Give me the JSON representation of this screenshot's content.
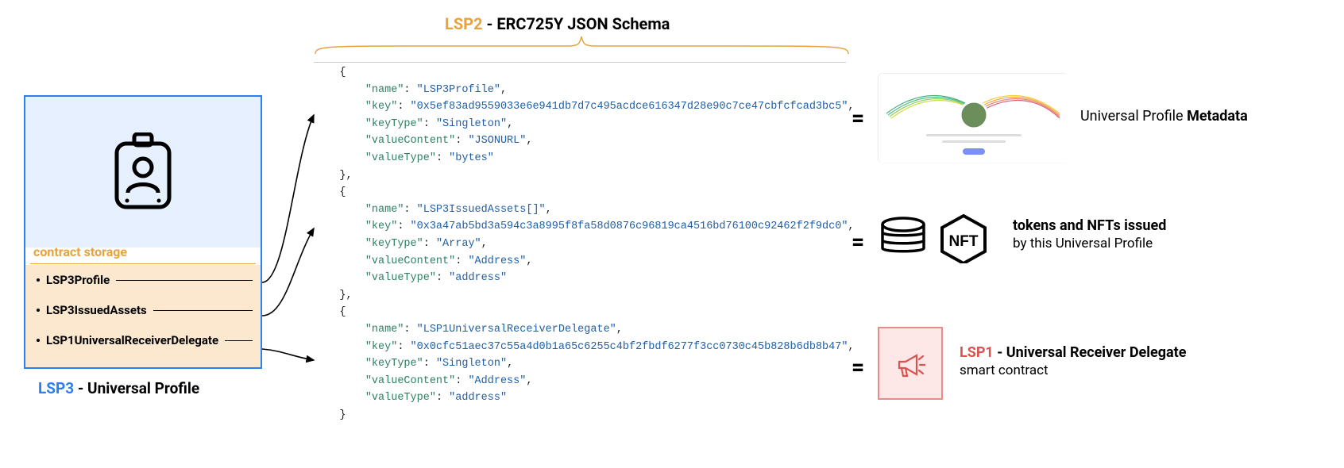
{
  "title": {
    "accent": "LSP2",
    "rest": " - ERC725Y JSON Schema"
  },
  "contract": {
    "storage_label": "contract storage",
    "items": [
      "LSP3Profile",
      "LSP3IssuedAssets",
      "LSP1UniversalReceiverDelegate"
    ],
    "caption_accent": "LSP3",
    "caption_rest": " - Universal Profile"
  },
  "schema": [
    {
      "name": "LSP3Profile",
      "key": "0x5ef83ad9559033e6e941db7d7c495acdce616347d28e90c7ce47cbfcfcad3bc5",
      "keyType": "Singleton",
      "valueContent": "JSONURL",
      "valueType": "bytes"
    },
    {
      "name": "LSP3IssuedAssets[]",
      "key": "0x3a47ab5bd3a594c3a8995f8fa58d0876c96819ca4516bd76100c92462f2f9dc0",
      "keyType": "Array",
      "valueContent": "Address",
      "valueType": "address"
    },
    {
      "name": "LSP1UniversalReceiverDelegate",
      "key": "0x0cfc51aec37c55a4d0b1a65c6255c4bf2fbdf6277f3cc0730c45b828b6db8b47",
      "keyType": "Singleton",
      "valueContent": "Address",
      "valueType": "address"
    }
  ],
  "right": {
    "metadata_prefix": "Universal Profile ",
    "metadata_bold": "Metadata",
    "tokens_bold": "tokens and NFTs issued",
    "tokens_sub": "by this Universal Profile",
    "lsp1_accent": "LSP1",
    "lsp1_rest": " - Universal Receiver Delegate",
    "lsp1_sub": "smart contract"
  },
  "colors": {
    "accent_orange": "#e8a33d",
    "accent_blue": "#2b7ff2",
    "accent_red": "#d9534f",
    "box_blue_bg": "#e6f0fe",
    "box_orange_bg": "#fce8cf",
    "lsp1_border": "#e98b87",
    "lsp1_bg": "#fde8e7",
    "key_color": "#2f7f60",
    "str_color": "#1f5fa8"
  }
}
